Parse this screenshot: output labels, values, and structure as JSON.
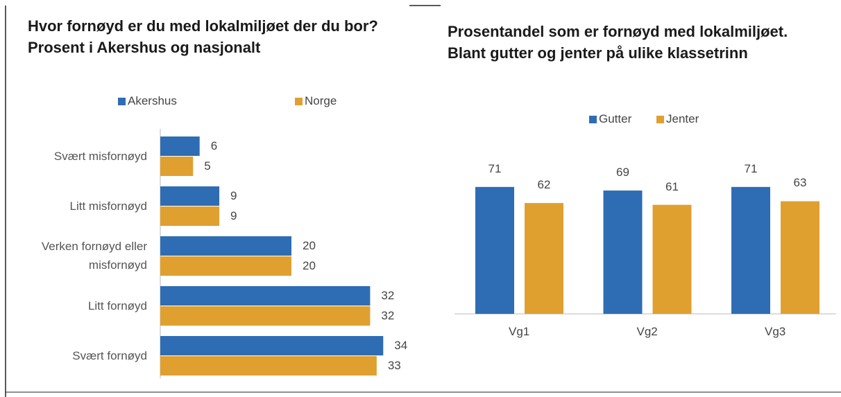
{
  "chart_data": [
    {
      "type": "hbar",
      "title": "Hvor fornøyd er du med lokalmiljøet der du bor? Prosent i Akershus og nasjonalt",
      "categories": [
        "Svært misfornøyd",
        "Litt misfornøyd",
        "Verken fornøyd eller misfornøyd",
        "Litt fornøyd",
        "Svært fornøyd"
      ],
      "series": [
        {
          "name": "Akershus",
          "color": "#2e6db4",
          "values": [
            6,
            9,
            20,
            32,
            34
          ]
        },
        {
          "name": "Norge",
          "color": "#e0a030",
          "values": [
            5,
            9,
            20,
            32,
            33
          ]
        }
      ],
      "xlim": [
        0,
        40
      ]
    },
    {
      "type": "bar",
      "title": "Prosentandel som er fornøyd med lokalmiljøet. Blant gutter og jenter på ulike klassetrinn",
      "categories": [
        "Vg1",
        "Vg2",
        "Vg3"
      ],
      "series": [
        {
          "name": "Gutter",
          "color": "#2e6db4",
          "values": [
            71,
            69,
            71
          ]
        },
        {
          "name": "Jenter",
          "color": "#e0a030",
          "values": [
            62,
            61,
            63
          ]
        }
      ],
      "ylim": [
        0,
        100
      ]
    }
  ]
}
